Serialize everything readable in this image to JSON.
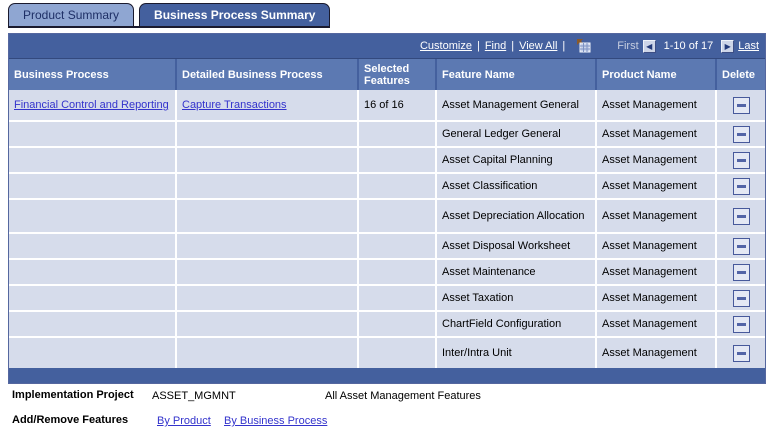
{
  "tabs": [
    {
      "label": "Product Summary",
      "active": false
    },
    {
      "label": "Business Process Summary",
      "active": true
    }
  ],
  "grid": {
    "toolbar": {
      "customize": "Customize",
      "find": "Find",
      "view_all": "View All",
      "pipe": "|",
      "download_icon": "download-grid-icon",
      "first": "First",
      "prev_icon": "previous-page-icon",
      "range": "1-10 of 17",
      "next_icon": "next-page-icon",
      "last": "Last"
    },
    "columns": [
      "Business Process",
      "Detailed Business Process",
      "Selected Features",
      "Feature Name",
      "Product Name",
      "Delete"
    ],
    "rows": [
      {
        "business_process": "Financial Control and Reporting",
        "detailed_business_process": "Capture Transactions",
        "selected_features": "16 of 16",
        "feature_name": "Asset Management General",
        "product_name": "Asset Management"
      },
      {
        "business_process": "",
        "detailed_business_process": "",
        "selected_features": "",
        "feature_name": "General Ledger General",
        "product_name": "Asset Management"
      },
      {
        "business_process": "",
        "detailed_business_process": "",
        "selected_features": "",
        "feature_name": "Asset Capital Planning",
        "product_name": "Asset Management"
      },
      {
        "business_process": "",
        "detailed_business_process": "",
        "selected_features": "",
        "feature_name": "Asset Classification",
        "product_name": "Asset Management"
      },
      {
        "business_process": "",
        "detailed_business_process": "",
        "selected_features": "",
        "feature_name": "Asset Depreciation Allocation",
        "product_name": "Asset Management"
      },
      {
        "business_process": "",
        "detailed_business_process": "",
        "selected_features": "",
        "feature_name": "Asset Disposal Worksheet",
        "product_name": "Asset Management"
      },
      {
        "business_process": "",
        "detailed_business_process": "",
        "selected_features": "",
        "feature_name": "Asset Maintenance",
        "product_name": "Asset Management"
      },
      {
        "business_process": "",
        "detailed_business_process": "",
        "selected_features": "",
        "feature_name": "Asset Taxation",
        "product_name": "Asset Management"
      },
      {
        "business_process": "",
        "detailed_business_process": "",
        "selected_features": "",
        "feature_name": "ChartField Configuration",
        "product_name": "Asset Management"
      },
      {
        "business_process": "",
        "detailed_business_process": "",
        "selected_features": "",
        "feature_name": "Inter/Intra Unit",
        "product_name": "Asset Management"
      }
    ],
    "delete_icon": "minus-icon"
  },
  "footer": {
    "implementation_project_label": "Implementation Project",
    "implementation_project_value": "ASSET_MGMNT",
    "implementation_project_desc": "All Asset Management Features",
    "add_remove_label": "Add/Remove Features",
    "by_product": "By Product",
    "by_business_process": "By Business Process"
  },
  "colors": {
    "dark_blue": "#44609E",
    "mid_blue": "#5C79B2",
    "cell": "#D6DCEB",
    "tab_inactive": "#8FA6D2",
    "link": "#3333CC",
    "nav_disabled": "#C6CEE0",
    "btn_border": "#47599B"
  }
}
